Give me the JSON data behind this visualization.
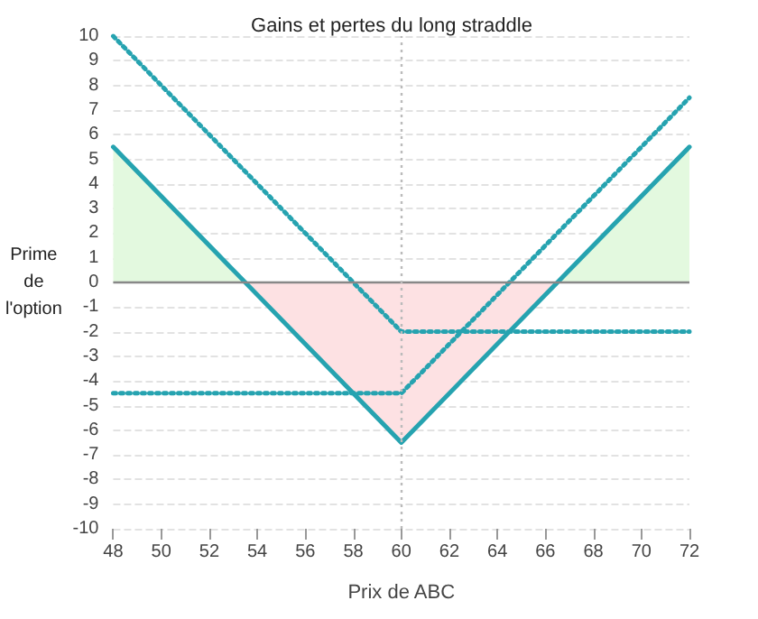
{
  "chart_data": {
    "type": "line",
    "title": "Gains et pertes du long straddle",
    "xlabel": "Prix de ABC",
    "ylabel": "Prime\nde\nl'option",
    "x": [
      48,
      60,
      72
    ],
    "series": [
      {
        "type": "area",
        "color": "#26a3b0",
        "values": [
          5.5,
          -6.5,
          5.5
        ],
        "line_style": "solid"
      },
      {
        "color": "#26a3b0",
        "values": [
          10,
          -2,
          -2
        ],
        "line_style": "dotted"
      },
      {
        "color": "#26a3b0",
        "values": [
          -4.5,
          -4.5,
          7.5
        ],
        "line_style": "dotted"
      }
    ],
    "xlim": [
      48,
      72
    ],
    "xticks": [
      48,
      50,
      52,
      54,
      56,
      58,
      60,
      62,
      64,
      66,
      68,
      70,
      72
    ],
    "ylim": [
      -10,
      10
    ],
    "yticks": [
      -10,
      -9,
      -8,
      -7,
      -6,
      -5,
      -4,
      -3,
      -2,
      -1,
      0,
      1,
      2,
      3,
      4,
      5,
      6,
      7,
      8,
      9,
      10
    ],
    "ref_lines": [
      {
        "axis": "y",
        "value": 0,
        "color": "#888888",
        "line_style": "solid"
      },
      {
        "axis": "x",
        "value": 60,
        "color": "#bbbbbb",
        "line_style": "dotted"
      }
    ],
    "grid": "y",
    "marker": "none"
  }
}
